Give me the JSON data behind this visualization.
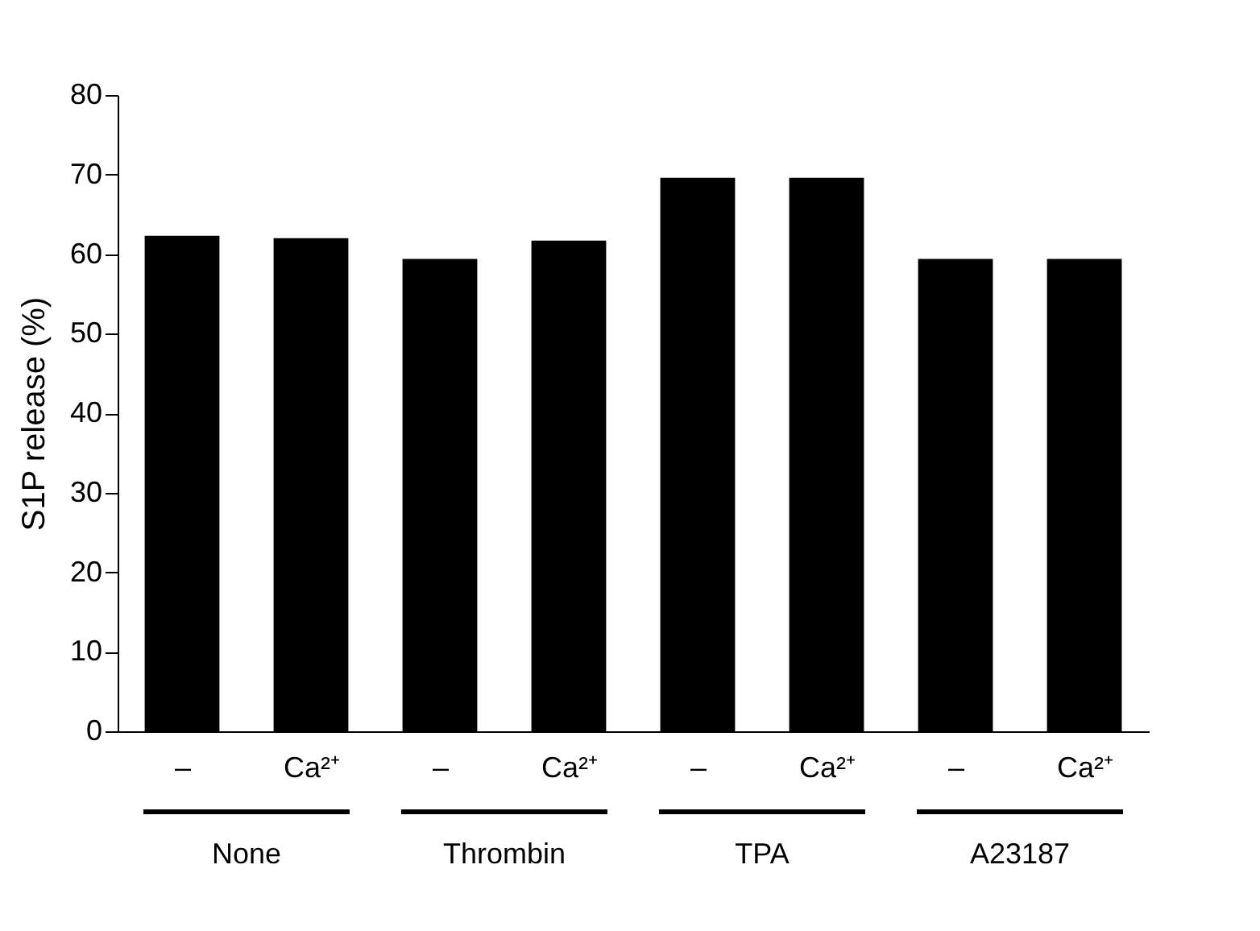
{
  "chart_data": {
    "type": "bar",
    "ylabel": "S1P release (%)",
    "categories": [
      "–",
      "Ca²⁺",
      "–",
      "Ca²⁺",
      "–",
      "Ca²⁺",
      "–",
      "Ca²⁺"
    ],
    "values": [
      62.3,
      62.0,
      59.4,
      61.7,
      69.6,
      69.6,
      59.4,
      59.4
    ],
    "color": "#000000",
    "ylim": [
      0,
      80
    ],
    "yticks": [
      0,
      10,
      20,
      30,
      40,
      50,
      60,
      70,
      80
    ],
    "grid": false,
    "annotations": [
      "None",
      "Thrombin",
      "TPA",
      "A23187"
    ]
  }
}
